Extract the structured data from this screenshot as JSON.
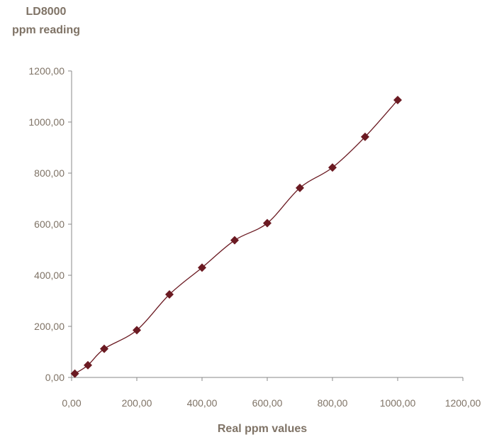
{
  "chart_data": {
    "type": "scatter",
    "ylabel_lines": [
      "LD8000",
      "ppm reading"
    ],
    "xlabel": "Real ppm values",
    "xlim": [
      0,
      1200
    ],
    "ylim": [
      0,
      1200
    ],
    "x_ticks": [
      "0,00",
      "200,00",
      "400,00",
      "600,00",
      "800,00",
      "1000,00",
      "1200,00"
    ],
    "y_ticks": [
      "0,00",
      "200,00",
      "400,00",
      "600,00",
      "800,00",
      "1000,00",
      "1200,00"
    ],
    "x_tick_values": [
      0,
      200,
      400,
      600,
      800,
      1000,
      1200
    ],
    "y_tick_values": [
      0,
      200,
      400,
      600,
      800,
      1000,
      1200
    ],
    "grid": false,
    "smooth_line": true,
    "marker": "diamond",
    "colors": {
      "series": "#6b1a22",
      "axis": "#888888",
      "text": "#7f7366"
    },
    "series": [
      {
        "x": [
          10,
          50,
          100,
          200,
          300,
          400,
          500,
          600,
          700,
          800,
          900,
          1000
        ],
        "y": [
          15,
          48,
          112,
          185,
          325,
          430,
          537,
          604,
          742,
          822,
          942,
          1086
        ]
      }
    ]
  }
}
